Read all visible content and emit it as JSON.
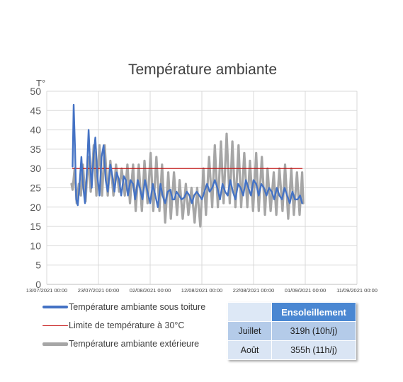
{
  "chart_data": {
    "type": "line",
    "title": "Température ambiante",
    "ylabel": "T°",
    "xlabel": "",
    "ylim": [
      0,
      50
    ],
    "y_ticks": [
      0,
      5,
      10,
      15,
      20,
      25,
      30,
      35,
      40,
      45,
      50
    ],
    "x_ticks": [
      "13/07/2021 00:00",
      "23/07/2021 00:00",
      "02/08/2021 00:00",
      "12/08/2021 00:00",
      "22/08/2021 00:00",
      "01/09/2021 00:00",
      "11/09/2021 00:00"
    ],
    "x_range_days": [
      0,
      60
    ],
    "grid": true,
    "legend_position": "bottom-left",
    "series": [
      {
        "name": "Température ambiante sous toiture",
        "color": "#4472c4",
        "points": [
          [
            5.0,
            30.5
          ],
          [
            5.2,
            46.5
          ],
          [
            5.45,
            36
          ],
          [
            5.7,
            22
          ],
          [
            6.0,
            20.5
          ],
          [
            6.3,
            25
          ],
          [
            6.7,
            33
          ],
          [
            7.0,
            26
          ],
          [
            7.4,
            21
          ],
          [
            7.8,
            30
          ],
          [
            8.1,
            40
          ],
          [
            8.4,
            31
          ],
          [
            8.7,
            25
          ],
          [
            9.1,
            34
          ],
          [
            9.4,
            38
          ],
          [
            9.8,
            28
          ],
          [
            10.2,
            23
          ],
          [
            10.6,
            33
          ],
          [
            11.0,
            36
          ],
          [
            11.4,
            27
          ],
          [
            11.8,
            24
          ],
          [
            12.3,
            31
          ],
          [
            12.7,
            28
          ],
          [
            13.1,
            24
          ],
          [
            13.5,
            29
          ],
          [
            14.0,
            27
          ],
          [
            14.4,
            23
          ],
          [
            14.9,
            28
          ],
          [
            15.3,
            27
          ],
          [
            15.7,
            23
          ],
          [
            16.2,
            27
          ],
          [
            16.7,
            26
          ],
          [
            17.1,
            22
          ],
          [
            17.6,
            27
          ],
          [
            18.0,
            25
          ],
          [
            18.5,
            22
          ],
          [
            19.0,
            27
          ],
          [
            19.5,
            24
          ],
          [
            20.0,
            21
          ],
          [
            20.5,
            26
          ],
          [
            21.0,
            23
          ],
          [
            21.5,
            20
          ],
          [
            22.0,
            26
          ],
          [
            22.4,
            23
          ],
          [
            22.9,
            21
          ],
          [
            23.4,
            24
          ],
          [
            23.9,
            24.5
          ],
          [
            24.3,
            22
          ],
          [
            24.7,
            22
          ],
          [
            25.1,
            24
          ],
          [
            25.6,
            23
          ],
          [
            26.1,
            22
          ],
          [
            26.6,
            22.5
          ],
          [
            27.1,
            24
          ],
          [
            27.6,
            23
          ],
          [
            28.1,
            21
          ],
          [
            28.5,
            23
          ],
          [
            29.0,
            24
          ],
          [
            29.5,
            23
          ],
          [
            30.0,
            22
          ],
          [
            30.5,
            24
          ],
          [
            31.0,
            26
          ],
          [
            31.5,
            24
          ],
          [
            32.0,
            25
          ],
          [
            32.5,
            27
          ],
          [
            33.0,
            25
          ],
          [
            33.5,
            22
          ],
          [
            34.0,
            26
          ],
          [
            34.5,
            24
          ],
          [
            35.0,
            23
          ],
          [
            35.5,
            27
          ],
          [
            36.0,
            24
          ],
          [
            36.5,
            22
          ],
          [
            37.0,
            26
          ],
          [
            37.5,
            25
          ],
          [
            38.0,
            23
          ],
          [
            38.5,
            27
          ],
          [
            39.0,
            25
          ],
          [
            39.5,
            23
          ],
          [
            40.0,
            27
          ],
          [
            40.5,
            26
          ],
          [
            41.0,
            23
          ],
          [
            41.5,
            26
          ],
          [
            42.0,
            25
          ],
          [
            42.5,
            23
          ],
          [
            43.0,
            25
          ],
          [
            43.5,
            24
          ],
          [
            44.0,
            22
          ],
          [
            44.5,
            25
          ],
          [
            45.0,
            23
          ],
          [
            45.5,
            22
          ],
          [
            46.0,
            25
          ],
          [
            46.5,
            23
          ],
          [
            47.0,
            21
          ],
          [
            47.5,
            24
          ],
          [
            48.0,
            22
          ],
          [
            48.5,
            22
          ],
          [
            49.0,
            23
          ],
          [
            49.4,
            21
          ]
        ]
      },
      {
        "name": "Limite de température à 30°C",
        "color": "#c00000",
        "points": [
          [
            5.0,
            30
          ],
          [
            49.4,
            30
          ]
        ]
      },
      {
        "name": "Température ambiante extérieure",
        "color": "#a6a6a6",
        "points": [
          [
            4.8,
            26
          ],
          [
            5.0,
            24.5
          ],
          [
            5.4,
            30
          ],
          [
            5.8,
            21
          ],
          [
            6.2,
            26
          ],
          [
            6.6,
            23
          ],
          [
            7.0,
            31
          ],
          [
            7.5,
            21.5
          ],
          [
            8.0,
            33
          ],
          [
            8.5,
            24
          ],
          [
            9.1,
            36
          ],
          [
            9.6,
            23
          ],
          [
            10.2,
            36
          ],
          [
            10.7,
            23
          ],
          [
            11.2,
            36
          ],
          [
            11.8,
            23
          ],
          [
            12.3,
            32
          ],
          [
            12.9,
            23
          ],
          [
            13.4,
            31
          ],
          [
            14.0,
            24
          ],
          [
            14.5,
            30
          ],
          [
            15.1,
            23
          ],
          [
            15.6,
            31
          ],
          [
            16.1,
            21
          ],
          [
            16.7,
            31
          ],
          [
            17.2,
            19
          ],
          [
            17.8,
            31
          ],
          [
            18.4,
            19
          ],
          [
            18.9,
            32
          ],
          [
            19.5,
            21
          ],
          [
            20.1,
            34
          ],
          [
            20.6,
            19
          ],
          [
            21.2,
            33
          ],
          [
            21.8,
            19
          ],
          [
            22.3,
            31
          ],
          [
            22.9,
            16
          ],
          [
            23.5,
            29
          ],
          [
            24.0,
            17
          ],
          [
            24.6,
            29
          ],
          [
            25.2,
            18
          ],
          [
            25.7,
            27
          ],
          [
            26.3,
            17
          ],
          [
            26.9,
            26
          ],
          [
            27.4,
            18
          ],
          [
            28.0,
            25
          ],
          [
            28.6,
            16
          ],
          [
            29.1,
            25
          ],
          [
            29.7,
            15
          ],
          [
            30.3,
            30
          ],
          [
            30.8,
            18
          ],
          [
            31.4,
            33
          ],
          [
            32.0,
            20
          ],
          [
            32.5,
            36
          ],
          [
            33.1,
            20
          ],
          [
            33.7,
            37
          ],
          [
            34.2,
            21
          ],
          [
            34.8,
            39
          ],
          [
            35.4,
            21
          ],
          [
            35.9,
            37
          ],
          [
            36.5,
            20
          ],
          [
            37.1,
            36
          ],
          [
            37.6,
            20
          ],
          [
            38.2,
            34
          ],
          [
            38.8,
            20
          ],
          [
            39.3,
            32
          ],
          [
            39.9,
            19
          ],
          [
            40.5,
            34
          ],
          [
            41.0,
            19
          ],
          [
            41.6,
            33
          ],
          [
            42.2,
            18
          ],
          [
            42.7,
            30
          ],
          [
            43.3,
            19
          ],
          [
            43.9,
            29
          ],
          [
            44.4,
            18
          ],
          [
            45.0,
            30
          ],
          [
            45.6,
            19
          ],
          [
            46.1,
            31
          ],
          [
            46.7,
            17
          ],
          [
            47.3,
            30
          ],
          [
            47.8,
            18
          ],
          [
            48.4,
            29
          ],
          [
            48.9,
            18
          ],
          [
            49.4,
            29
          ],
          [
            49.6,
            21
          ]
        ]
      }
    ]
  },
  "legend": [
    {
      "label": "Température ambiante sous toiture",
      "color": "#4472c4"
    },
    {
      "label": "Limite de température à 30°C",
      "color": "#c00000"
    },
    {
      "label": "Température ambiante extérieure",
      "color": "#a6a6a6"
    }
  ],
  "sunshine_table": {
    "header": "Ensoleillement",
    "rows": [
      {
        "month": "Juillet",
        "value": "319h (10h/j)"
      },
      {
        "month": "Août",
        "value": "355h (11h/j)"
      }
    ]
  }
}
